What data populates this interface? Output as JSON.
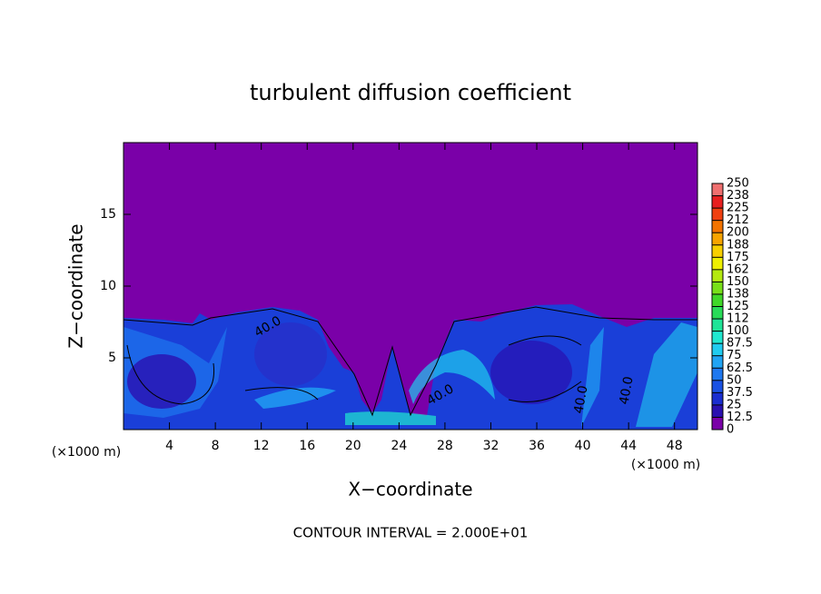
{
  "chart_data": {
    "type": "contour",
    "title": "turbulent diffusion coefficient",
    "x_label": "X−coordinate",
    "y_label": "Z−coordinate",
    "x_unit_left": "(×1000 m)",
    "x_unit_right": "(×1000 m)",
    "footer": "CONTOUR INTERVAL = 2.000E+01",
    "xlim": [
      0,
      50
    ],
    "xticks": [
      4,
      8,
      12,
      16,
      20,
      24,
      28,
      32,
      36,
      40,
      44,
      48
    ],
    "ylim": [
      0,
      20
    ],
    "yticks": [
      5,
      10,
      15
    ],
    "contour_labels": [
      "40.0",
      "40.0",
      "40.0",
      "40.0"
    ],
    "colorbar": {
      "levels": [
        0,
        12.5,
        25,
        37.5,
        50,
        62.5,
        75,
        87.5,
        100,
        {
          "value": 112.5,
          "label": "112"
        },
        125,
        {
          "value": 137.5,
          "label": "138"
        },
        150,
        {
          "value": 162.5,
          "label": "162"
        },
        175,
        {
          "value": 187.5,
          "label": "188"
        },
        200,
        {
          "value": 212.5,
          "label": "212"
        },
        225,
        {
          "value": 237.5,
          "label": "238"
        },
        250
      ],
      "colors": [
        "#7a00a8",
        "#2a10b0",
        "#1a2ed0",
        "#1a52e4",
        "#1e78f0",
        "#20a4f4",
        "#20ccf0",
        "#20e8d0",
        "#20e498",
        "#28dc58",
        "#40d828",
        "#78e018",
        "#b4ea10",
        "#eef000",
        "#f8d000",
        "#f8a400",
        "#f47400",
        "#f04010",
        "#e82020",
        "#f07070"
      ]
    }
  }
}
